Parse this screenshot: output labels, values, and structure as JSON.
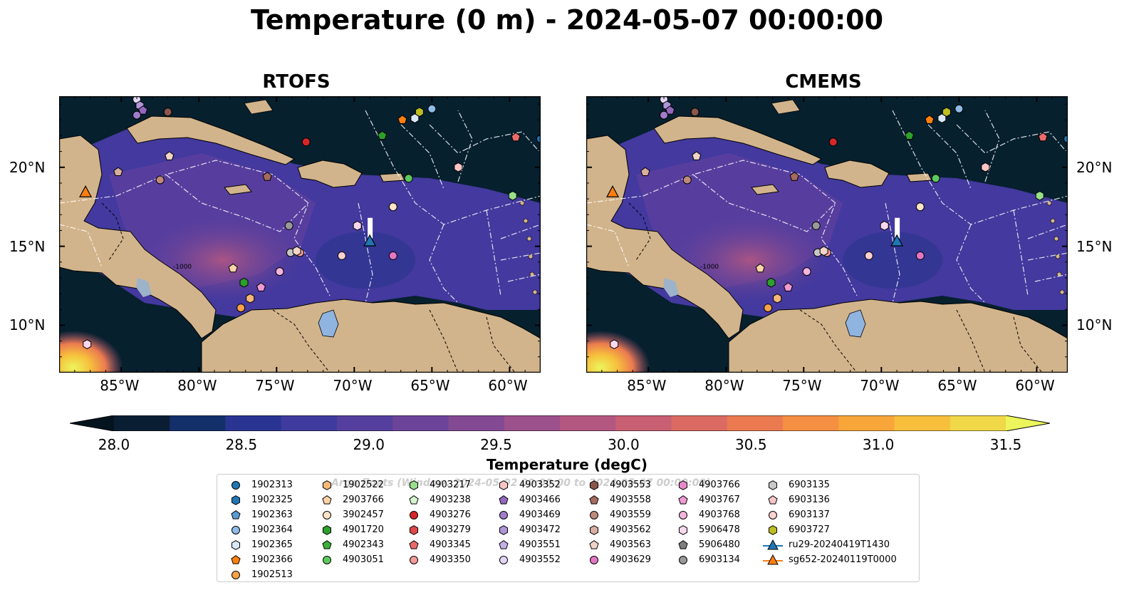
{
  "title": "Temperature (0 m) - 2024-05-07 00:00:00",
  "panels": [
    {
      "title": "RTOFS"
    },
    {
      "title": "CMEMS"
    }
  ],
  "axes": {
    "lon_labels": [
      "85°W",
      "80°W",
      "75°W",
      "70°W",
      "65°W",
      "60°W"
    ],
    "lat_labels": [
      "20°N",
      "15°N",
      "10°N"
    ],
    "lon_range": [
      -89,
      -58
    ],
    "lat_range": [
      7,
      24.5
    ]
  },
  "bathymetry_label": "-1000",
  "colorbar": {
    "label": "Temperature (degC)",
    "min": 28.0,
    "max": 31.5,
    "ticks": [
      "28.0",
      "28.5",
      "29.0",
      "29.5",
      "30.0",
      "30.5",
      "31.0",
      "31.5"
    ],
    "colors": [
      "#0a1e33",
      "#14306a",
      "#2a3593",
      "#3f3b9e",
      "#553f9e",
      "#6b449a",
      "#834a93",
      "#9c508c",
      "#b35781",
      "#c85f73",
      "#db6b62",
      "#eb7a50",
      "#f58f42",
      "#f8a63a",
      "#f7bf3c",
      "#f0d848"
    ],
    "under_color": "#04141f",
    "over_color": "#ecf55c"
  },
  "legend": {
    "watermark": "Argo floats (Window: 2024-05-02 00:00:00 to 2024-05-07 00:00:00)",
    "columns": [
      [
        {
          "label": "1902313",
          "marker": "circle",
          "color": "#1f77b4"
        },
        {
          "label": "1902325",
          "marker": "hexagon",
          "color": "#1f77b4"
        },
        {
          "label": "1902363",
          "marker": "pentagon",
          "color": "#5b9bd5"
        },
        {
          "label": "1902364",
          "marker": "circle",
          "color": "#8fbbe6"
        },
        {
          "label": "1902365",
          "marker": "hexagon",
          "color": "#d9e8f7"
        },
        {
          "label": "1902366",
          "marker": "pentagon",
          "color": "#ff7f0e"
        },
        {
          "label": "1902513",
          "marker": "circle",
          "color": "#f7a24a"
        }
      ],
      [
        {
          "label": "1902522",
          "marker": "hexagon",
          "color": "#f8b878"
        },
        {
          "label": "2903766",
          "marker": "pentagon",
          "color": "#fcd3a8"
        },
        {
          "label": "3902457",
          "marker": "circle",
          "color": "#fde3c8"
        },
        {
          "label": "4901720",
          "marker": "hexagon",
          "color": "#2ca02c"
        },
        {
          "label": "4902343",
          "marker": "pentagon",
          "color": "#3aae3a"
        },
        {
          "label": "4903051",
          "marker": "circle",
          "color": "#5cc95c"
        }
      ],
      [
        {
          "label": "4903217",
          "marker": "hexagon",
          "color": "#98df8a"
        },
        {
          "label": "4903238",
          "marker": "pentagon",
          "color": "#d4f5cc"
        },
        {
          "label": "4903276",
          "marker": "circle",
          "color": "#d62728"
        },
        {
          "label": "4903279",
          "marker": "hexagon",
          "color": "#e04848"
        },
        {
          "label": "4903345",
          "marker": "pentagon",
          "color": "#ec6a6a"
        },
        {
          "label": "4903350",
          "marker": "circle",
          "color": "#f59a9a"
        }
      ],
      [
        {
          "label": "4903352",
          "marker": "hexagon",
          "color": "#fcc5c5"
        },
        {
          "label": "4903466",
          "marker": "pentagon",
          "color": "#9467bd"
        },
        {
          "label": "4903469",
          "marker": "circle",
          "color": "#a07cca"
        },
        {
          "label": "4903472",
          "marker": "hexagon",
          "color": "#b095d8"
        },
        {
          "label": "4903551",
          "marker": "pentagon",
          "color": "#c4b0e6"
        },
        {
          "label": "4903552",
          "marker": "circle",
          "color": "#e2d6f5"
        }
      ],
      [
        {
          "label": "4903553",
          "marker": "hexagon",
          "color": "#8c564b"
        },
        {
          "label": "4903558",
          "marker": "pentagon",
          "color": "#a56b5e"
        },
        {
          "label": "4903559",
          "marker": "circle",
          "color": "#bf8a7c"
        },
        {
          "label": "4903562",
          "marker": "hexagon",
          "color": "#d9ad9f"
        },
        {
          "label": "4903563",
          "marker": "pentagon",
          "color": "#f0d4c8"
        },
        {
          "label": "4903629",
          "marker": "circle",
          "color": "#e377c2"
        }
      ],
      [
        {
          "label": "4903766",
          "marker": "hexagon",
          "color": "#e888c9"
        },
        {
          "label": "4903767",
          "marker": "pentagon",
          "color": "#f09ad3"
        },
        {
          "label": "4903768",
          "marker": "circle",
          "color": "#f5b5de"
        },
        {
          "label": "5906478",
          "marker": "hexagon",
          "color": "#fbd7ee"
        },
        {
          "label": "5906480",
          "marker": "pentagon",
          "color": "#7f7f7f"
        },
        {
          "label": "6903134",
          "marker": "circle",
          "color": "#999999"
        }
      ],
      [
        {
          "label": "6903135",
          "marker": "hexagon",
          "color": "#c7c7c7"
        },
        {
          "label": "6903136",
          "marker": "pentagon",
          "color": "#f5c6c6"
        },
        {
          "label": "6903137",
          "marker": "circle",
          "color": "#fbd0d0"
        },
        {
          "label": "6903727",
          "marker": "hexagon",
          "color": "#bcbd22"
        },
        {
          "label": "ru29-20240419T1430",
          "marker": "triangle-line",
          "color": "#1f77b4"
        },
        {
          "label": "sg652-20240119T0000",
          "marker": "triangle-line",
          "color": "#ff7f0e"
        }
      ]
    ]
  },
  "map_markers": [
    {
      "lon": -84.0,
      "lat": 24.3,
      "marker": "circle",
      "color": "#e2d6f5"
    },
    {
      "lon": -83.8,
      "lat": 23.9,
      "marker": "hexagon",
      "color": "#b095d8"
    },
    {
      "lon": -83.6,
      "lat": 23.6,
      "marker": "pentagon",
      "color": "#9467bd"
    },
    {
      "lon": -84.0,
      "lat": 23.3,
      "marker": "circle",
      "color": "#a07cca"
    },
    {
      "lon": -82.0,
      "lat": 23.5,
      "marker": "circle",
      "color": "#8c564b"
    },
    {
      "lon": -73.1,
      "lat": 21.6,
      "marker": "circle",
      "color": "#d62728"
    },
    {
      "lon": -66.9,
      "lat": 23.0,
      "marker": "pentagon",
      "color": "#ff7f0e"
    },
    {
      "lon": -66.1,
      "lat": 23.1,
      "marker": "hexagon",
      "color": "#d9e8f7"
    },
    {
      "lon": -65.8,
      "lat": 23.5,
      "marker": "hexagon",
      "color": "#bcbd22"
    },
    {
      "lon": -65.0,
      "lat": 23.7,
      "marker": "circle",
      "color": "#8fbbe6"
    },
    {
      "lon": -68.2,
      "lat": 22.0,
      "marker": "pentagon",
      "color": "#2ca02c"
    },
    {
      "lon": -59.6,
      "lat": 21.9,
      "marker": "pentagon",
      "color": "#ec6a6a"
    },
    {
      "lon": -58.0,
      "lat": 21.8,
      "marker": "circle",
      "color": "#1f77b4"
    },
    {
      "lon": -81.9,
      "lat": 20.7,
      "marker": "pentagon",
      "color": "#f0d4c8"
    },
    {
      "lon": -85.2,
      "lat": 19.7,
      "marker": "pentagon",
      "color": "#d9ad9f"
    },
    {
      "lon": -82.5,
      "lat": 19.2,
      "marker": "circle",
      "color": "#bf8a7c"
    },
    {
      "lon": -75.6,
      "lat": 19.4,
      "marker": "pentagon",
      "color": "#a56b5e"
    },
    {
      "lon": -63.3,
      "lat": 20.0,
      "marker": "hexagon",
      "color": "#fcc5c5"
    },
    {
      "lon": -66.5,
      "lat": 19.3,
      "marker": "circle",
      "color": "#5cc95c"
    },
    {
      "lon": -59.8,
      "lat": 18.2,
      "marker": "hexagon",
      "color": "#98df8a"
    },
    {
      "lon": -87.3,
      "lat": 18.4,
      "marker": "triangle",
      "color": "#ff7f0e"
    },
    {
      "lon": -67.5,
      "lat": 17.5,
      "marker": "circle",
      "color": "#fde3c8"
    },
    {
      "lon": -74.2,
      "lat": 16.3,
      "marker": "circle",
      "color": "#999999"
    },
    {
      "lon": -69.8,
      "lat": 16.3,
      "marker": "hexagon",
      "color": "#fbd7ee"
    },
    {
      "lon": -69.0,
      "lat": 15.3,
      "marker": "triangle",
      "color": "#1f77b4"
    },
    {
      "lon": -74.1,
      "lat": 14.6,
      "marker": "circle",
      "color": "#c7c7c7"
    },
    {
      "lon": -73.5,
      "lat": 14.6,
      "marker": "circle",
      "color": "#f59a9a"
    },
    {
      "lon": -73.7,
      "lat": 14.7,
      "marker": "hexagon",
      "color": "#f0d4c8"
    },
    {
      "lon": -70.8,
      "lat": 14.4,
      "marker": "circle",
      "color": "#fbd0d0"
    },
    {
      "lon": -67.5,
      "lat": 14.4,
      "marker": "circle",
      "color": "#e377c2"
    },
    {
      "lon": -77.8,
      "lat": 13.6,
      "marker": "pentagon",
      "color": "#fcd3a8"
    },
    {
      "lon": -74.8,
      "lat": 13.4,
      "marker": "circle",
      "color": "#f5b5de"
    },
    {
      "lon": -77.1,
      "lat": 12.7,
      "marker": "hexagon",
      "color": "#2ca02c"
    },
    {
      "lon": -76.0,
      "lat": 12.4,
      "marker": "pentagon",
      "color": "#f09ad3"
    },
    {
      "lon": -76.7,
      "lat": 11.7,
      "marker": "hexagon",
      "color": "#f8b878"
    },
    {
      "lon": -77.3,
      "lat": 11.1,
      "marker": "circle",
      "color": "#f7a24a"
    },
    {
      "lon": -87.2,
      "lat": 8.8,
      "marker": "hexagon",
      "color": "#fbd7ee"
    }
  ]
}
